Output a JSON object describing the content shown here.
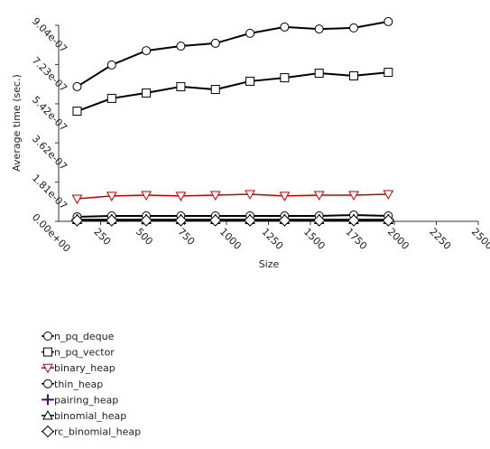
{
  "chart_data": {
    "type": "line",
    "xlabel": "Size",
    "ylabel": "Average time (sec.)",
    "x": [
      110,
      316,
      522,
      728,
      934,
      1140,
      1346,
      1552,
      1758,
      1964
    ],
    "xlim": [
      0,
      2500
    ],
    "xticks": [
      250,
      500,
      750,
      1000,
      1250,
      1500,
      1750,
      2000,
      2250,
      2500
    ],
    "ylim": [
      0,
      9.04e-07
    ],
    "yticks": [
      {
        "value": 0,
        "label": "0.00e+00"
      },
      {
        "value": 1.81e-07,
        "label": "1.81e-07"
      },
      {
        "value": 3.62e-07,
        "label": "3.62e-07"
      },
      {
        "value": 5.42e-07,
        "label": "5.42e-07"
      },
      {
        "value": 7.23e-07,
        "label": "7.23e-07"
      },
      {
        "value": 9.04e-07,
        "label": "9.04e-07"
      }
    ],
    "series": [
      {
        "name": "n_pq_deque",
        "color": "#000000",
        "marker": "circle",
        "values": [
          6.21e-07,
          7.21e-07,
          7.87e-07,
          8.08e-07,
          8.21e-07,
          8.67e-07,
          8.96e-07,
          8.87e-07,
          8.92e-07,
          9.21e-07
        ]
      },
      {
        "name": "n_pq_vector",
        "color": "#000000",
        "marker": "square",
        "values": [
          5.08e-07,
          5.67e-07,
          5.92e-07,
          6.21e-07,
          6.08e-07,
          6.46e-07,
          6.62e-07,
          6.83e-07,
          6.71e-07,
          6.87e-07
        ]
      },
      {
        "name": "binary_heap",
        "color": "#c00000",
        "marker": "triangle-down",
        "values": [
          1.04e-07,
          1.17e-07,
          1.21e-07,
          1.17e-07,
          1.21e-07,
          1.25e-07,
          1.17e-07,
          1.21e-07,
          1.21e-07,
          1.25e-07
        ]
      },
      {
        "name": "thin_heap",
        "color": "#000000",
        "marker": "circle",
        "values": [
          2.1e-08,
          2.5e-08,
          2.5e-08,
          2.5e-08,
          2.5e-08,
          2.5e-08,
          2.5e-08,
          2.5e-08,
          2.9e-08,
          2.5e-08
        ]
      },
      {
        "name": "pairing_heap",
        "color": "#4b0d6b",
        "marker": "plus",
        "values": [
          8e-09,
          8e-09,
          8e-09,
          8e-09,
          8e-09,
          8e-09,
          8e-09,
          8e-09,
          8e-09,
          8e-09
        ]
      },
      {
        "name": "binomial_heap",
        "color": "#000000",
        "marker": "triangle-up",
        "values": [
          6e-09,
          6e-09,
          6e-09,
          6e-09,
          6e-09,
          6e-09,
          6e-09,
          6e-09,
          6e-09,
          6e-09
        ]
      },
      {
        "name": "rc_binomial_heap",
        "color": "#000000",
        "marker": "diamond",
        "values": [
          4e-09,
          4e-09,
          4e-09,
          4e-09,
          4e-09,
          4e-09,
          4e-09,
          4e-09,
          4e-09,
          4e-09
        ]
      }
    ]
  }
}
